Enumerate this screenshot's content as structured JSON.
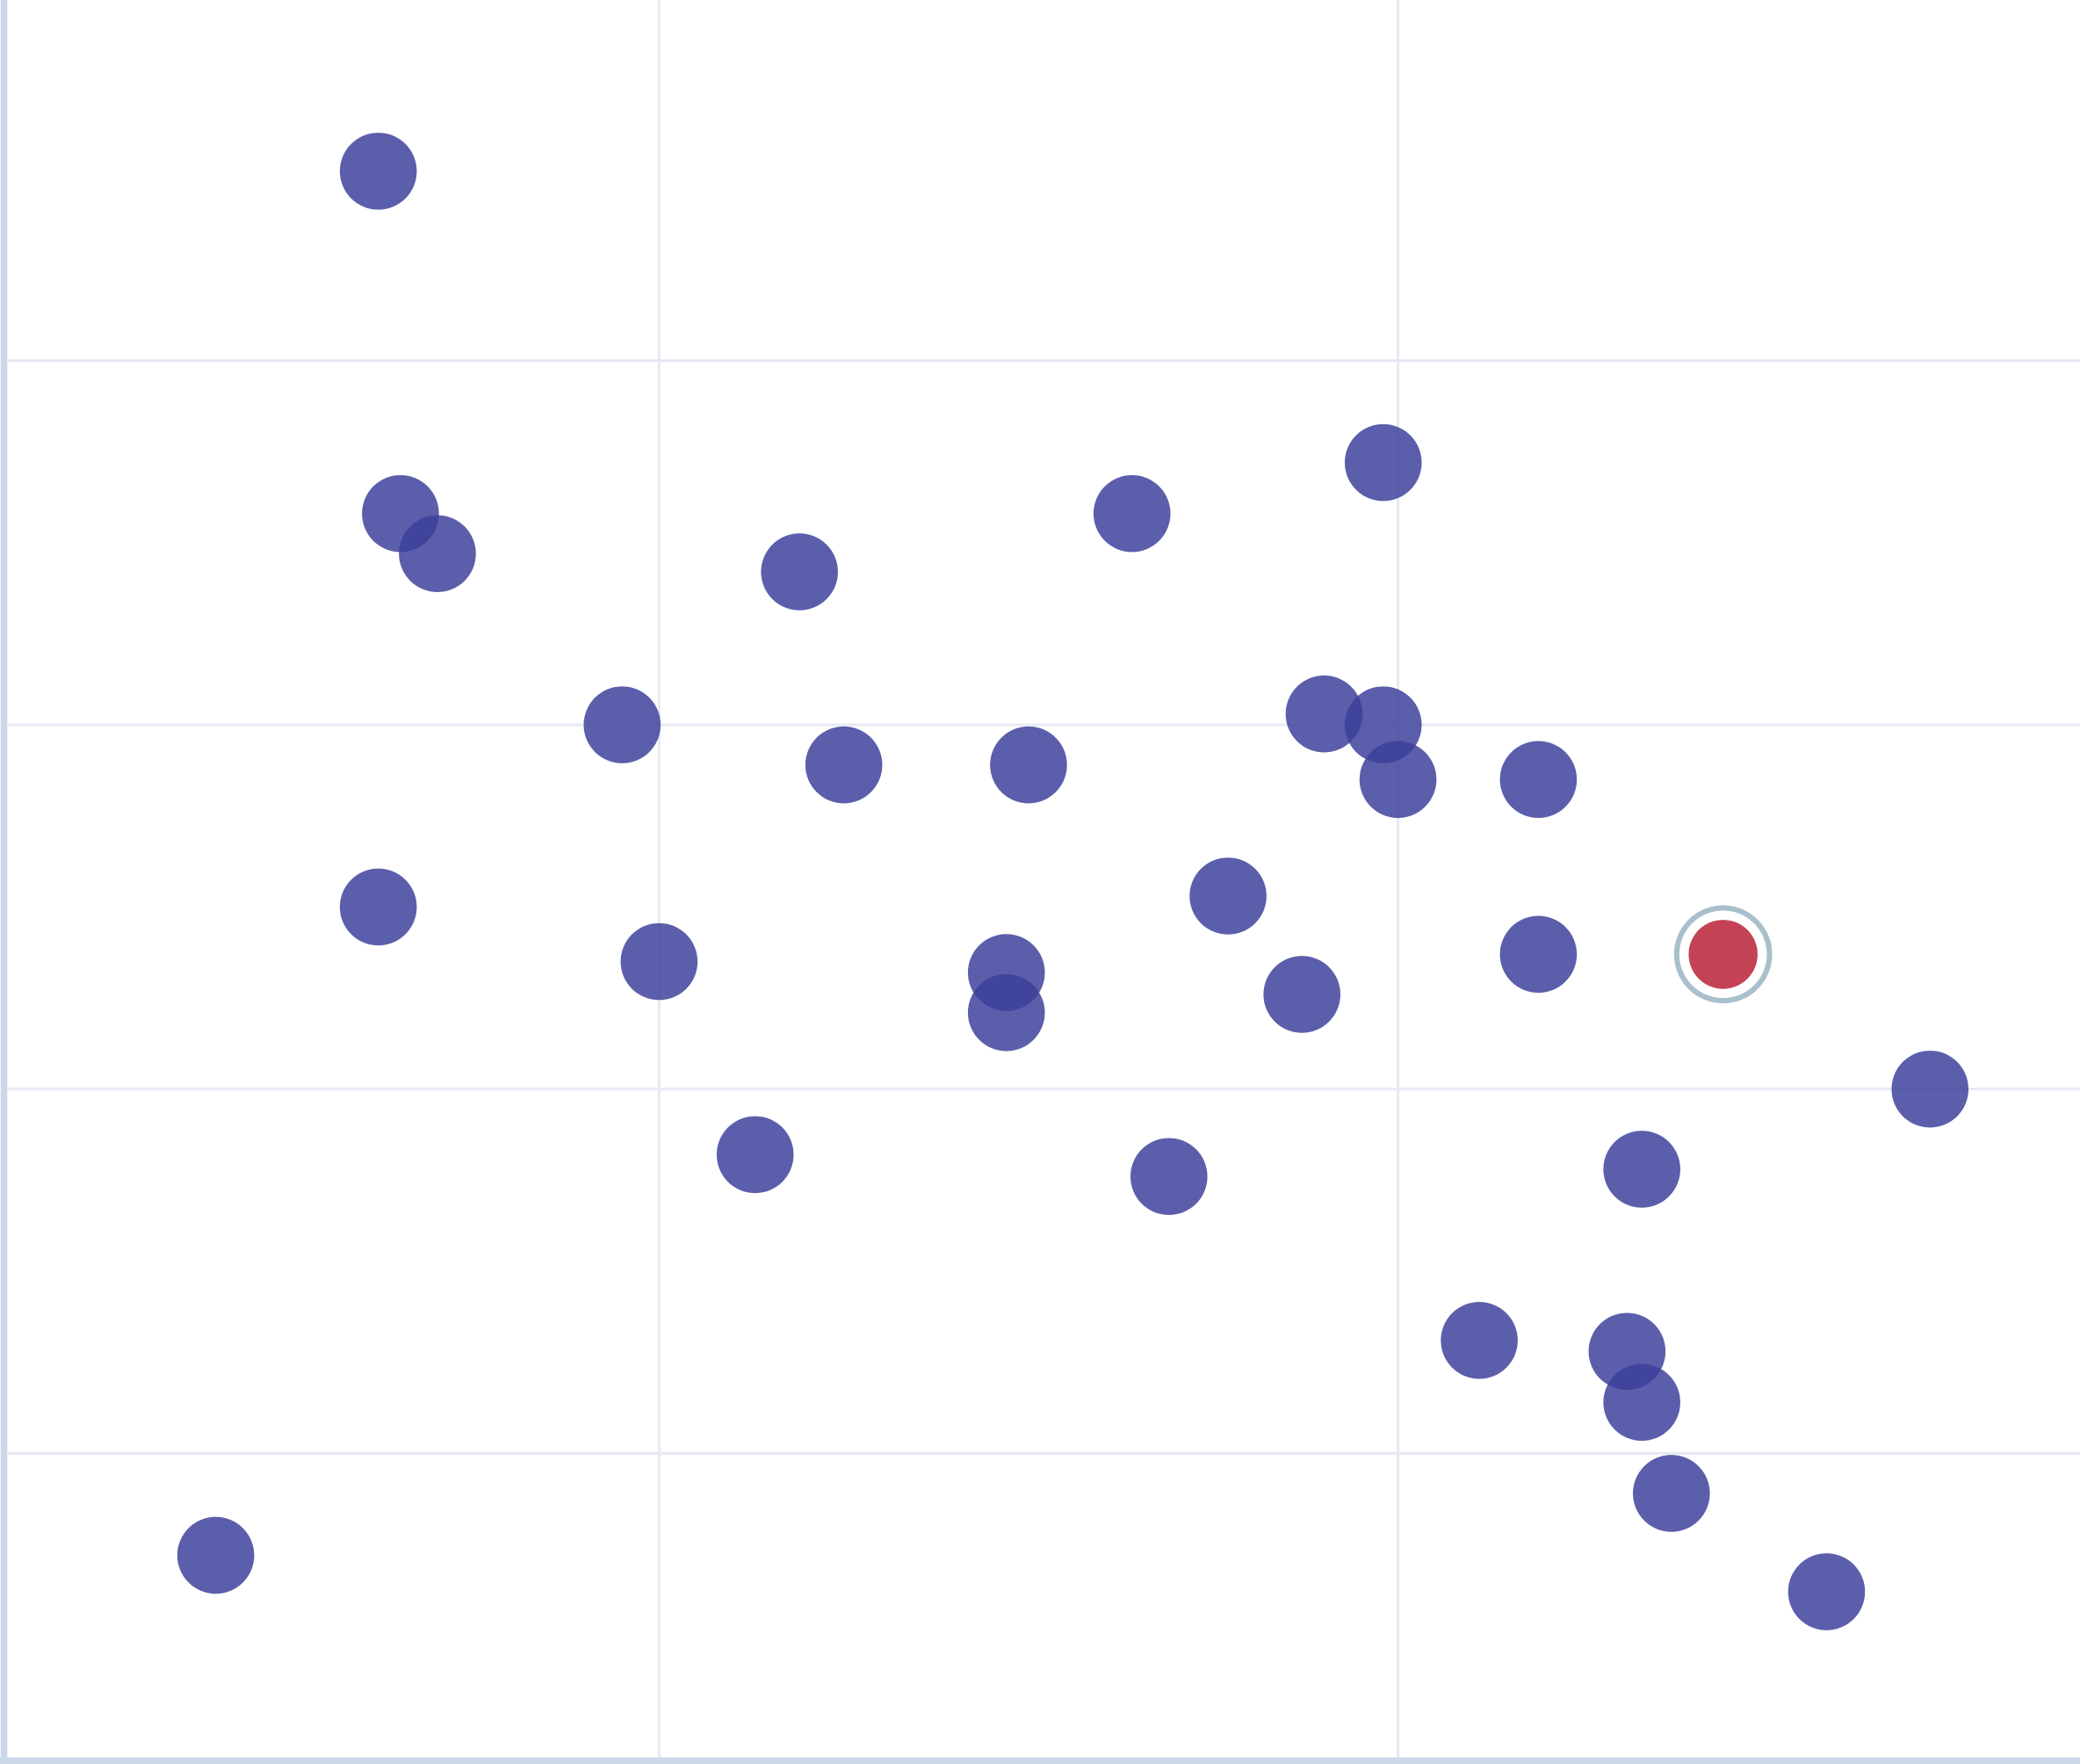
{
  "chart_data": {
    "type": "scatter",
    "title": "",
    "xlabel": "",
    "ylabel": "",
    "xlim": [
      0.117,
      2.923
    ],
    "ylim": [
      0.158,
      4.99
    ],
    "x_gridlines": [
      1,
      2
    ],
    "y_gridlines": [
      1,
      2,
      3,
      4
    ],
    "grid": true,
    "legend": "none",
    "colors": {
      "point": "#3b3f9a",
      "highlight": "#c0394b",
      "highlight_ring": "#a9bfcc",
      "axis": "#cdd7ea",
      "grid": "#e6e9f4"
    },
    "points": [
      {
        "x": 0.62,
        "y": 4.52
      },
      {
        "x": 0.65,
        "y": 3.58
      },
      {
        "x": 0.7,
        "y": 3.47
      },
      {
        "x": 1.19,
        "y": 3.42
      },
      {
        "x": 1.64,
        "y": 3.58
      },
      {
        "x": 1.98,
        "y": 3.72
      },
      {
        "x": 0.95,
        "y": 3.0
      },
      {
        "x": 1.25,
        "y": 2.89
      },
      {
        "x": 1.5,
        "y": 2.89
      },
      {
        "x": 1.9,
        "y": 3.03
      },
      {
        "x": 1.98,
        "y": 3.0
      },
      {
        "x": 2.0,
        "y": 2.85
      },
      {
        "x": 2.19,
        "y": 2.85
      },
      {
        "x": 0.62,
        "y": 2.5
      },
      {
        "x": 1.0,
        "y": 2.35
      },
      {
        "x": 1.47,
        "y": 2.32
      },
      {
        "x": 1.47,
        "y": 2.21
      },
      {
        "x": 1.77,
        "y": 2.53
      },
      {
        "x": 1.87,
        "y": 2.26
      },
      {
        "x": 2.19,
        "y": 2.37
      },
      {
        "x": 2.44,
        "y": 2.37,
        "highlighted": true
      },
      {
        "x": 2.72,
        "y": 2.0
      },
      {
        "x": 2.33,
        "y": 1.78
      },
      {
        "x": 1.13,
        "y": 1.82
      },
      {
        "x": 1.69,
        "y": 1.76
      },
      {
        "x": 2.11,
        "y": 1.31
      },
      {
        "x": 2.31,
        "y": 1.28
      },
      {
        "x": 2.33,
        "y": 1.14
      },
      {
        "x": 2.37,
        "y": 0.89
      },
      {
        "x": 2.58,
        "y": 0.62
      },
      {
        "x": 0.4,
        "y": 0.72
      }
    ]
  }
}
